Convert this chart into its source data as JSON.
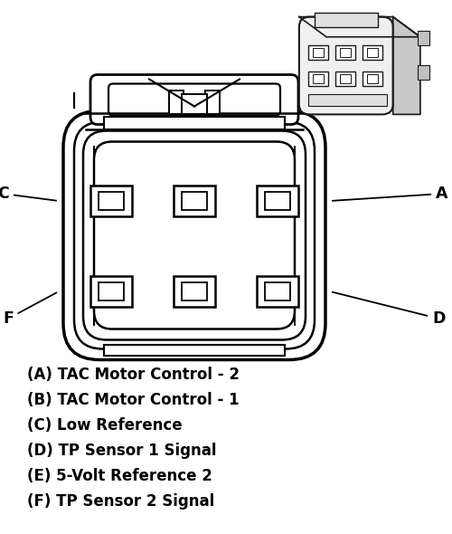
{
  "bg_color": "#ffffff",
  "line_color": "#000000",
  "legend_lines": [
    "(A) TAC Motor Control - 2",
    "(B) TAC Motor Control - 1",
    "(C) Low Reference",
    "(D) TP Sensor 1 Signal",
    "(E) 5-Volt Reference 2",
    "(F) TP Sensor 2 Signal"
  ],
  "fig_width": 5.0,
  "fig_height": 5.9,
  "dpi": 100
}
